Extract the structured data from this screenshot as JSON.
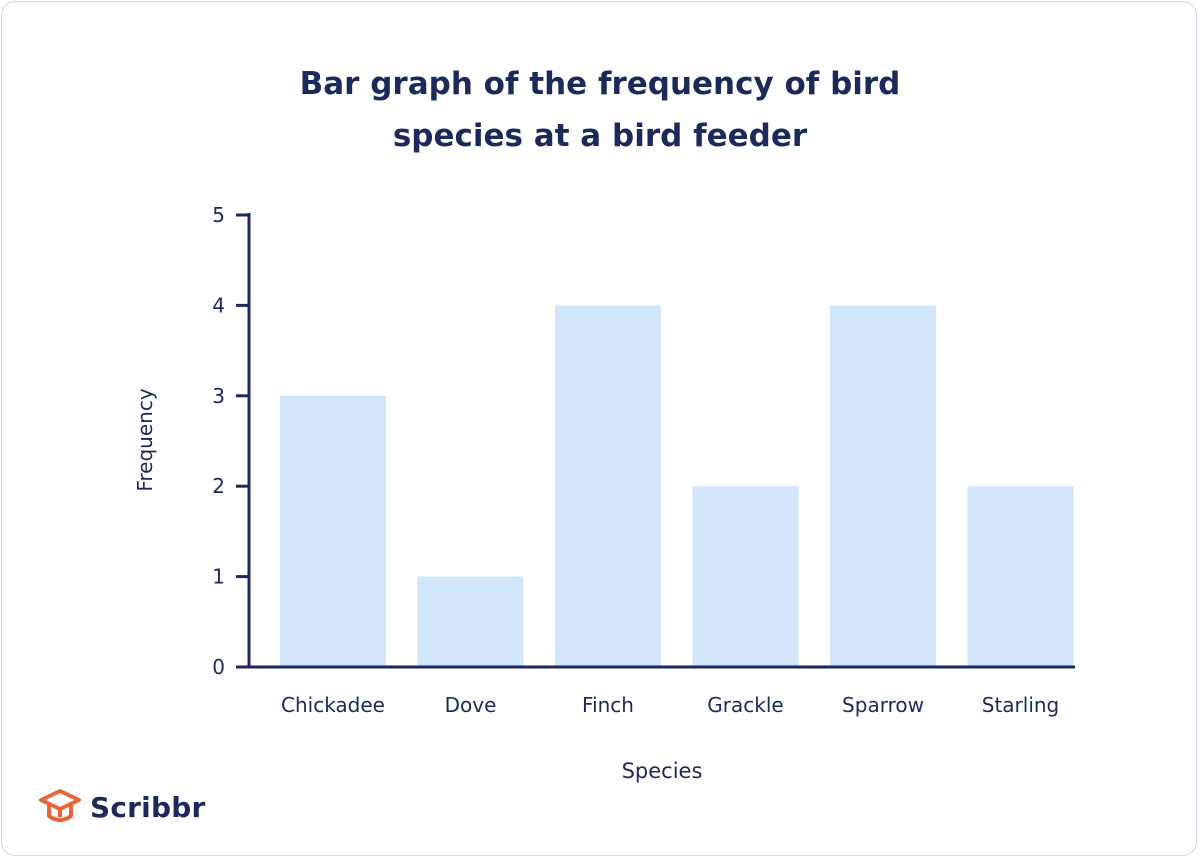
{
  "brand": {
    "name": "Scribbr",
    "logo_icon": "graduation-cap-icon",
    "logo_color": "#e8653a"
  },
  "colors": {
    "text": "#1b2a5a",
    "bar": "#d1e5fb",
    "axis": "#1b2a5a"
  },
  "chart_data": {
    "type": "bar",
    "title_lines": [
      "Bar graph of the frequency of bird",
      "species at a bird feeder"
    ],
    "title": "Bar graph of the frequency of bird species at a bird feeder",
    "xlabel": "Species",
    "ylabel": "Frequency",
    "categories": [
      "Chickadee",
      "Dove",
      "Finch",
      "Grackle",
      "Sparrow",
      "Starling"
    ],
    "values": [
      3,
      1,
      4,
      2,
      4,
      2
    ],
    "ylim": [
      0,
      5
    ],
    "yticks": [
      0,
      1,
      2,
      3,
      4,
      5
    ],
    "grid": false,
    "legend": "none"
  }
}
